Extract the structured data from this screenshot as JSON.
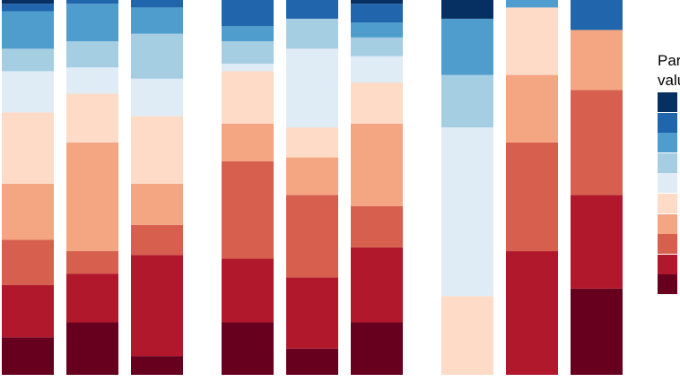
{
  "chart_data": {
    "type": "bar",
    "stacked": true,
    "normalized": true,
    "groups": [
      {
        "bars": [
          [
            0.1,
            0.14,
            0.12,
            0.15,
            0.19,
            0.11,
            0.06,
            0.1,
            0.02,
            0.01
          ],
          [
            0.14,
            0.13,
            0.06,
            0.29,
            0.13,
            0.07,
            0.07,
            0.1,
            0.01,
            0.0
          ],
          [
            0.05,
            0.27,
            0.08,
            0.11,
            0.18,
            0.1,
            0.12,
            0.07,
            0.02,
            0.0
          ]
        ]
      },
      {
        "bars": [
          [
            0.14,
            0.17,
            0.26,
            0.1,
            0.14,
            0.02,
            0.06,
            0.04,
            0.07,
            0.0
          ],
          [
            0.07,
            0.19,
            0.22,
            0.1,
            0.08,
            0.21,
            0.08,
            0.0,
            0.05,
            0.0
          ],
          [
            0.14,
            0.2,
            0.11,
            0.22,
            0.11,
            0.07,
            0.05,
            0.04,
            0.05,
            0.01
          ]
        ]
      },
      {
        "bars": [
          [
            0.0,
            0.0,
            0.0,
            0.0,
            0.21,
            0.45,
            0.14,
            0.15,
            0.0,
            0.05
          ],
          [
            0.0,
            0.33,
            0.29,
            0.18,
            0.18,
            0.0,
            0.0,
            0.02,
            0.0,
            0.0
          ],
          [
            0.23,
            0.25,
            0.28,
            0.16,
            0.0,
            0.0,
            0.0,
            0.0,
            0.08,
            0.0
          ]
        ]
      }
    ],
    "colors": [
      "#67001f",
      "#b2182b",
      "#d6604d",
      "#f4a582",
      "#fddbc7",
      "#e0ecf5",
      "#a6cee3",
      "#4e9dcd",
      "#2166ac",
      "#053061"
    ],
    "legend": {
      "title": "Par\nvalu",
      "position": "right",
      "visible_keys": 10
    },
    "grid": false,
    "axes_visible": false
  }
}
